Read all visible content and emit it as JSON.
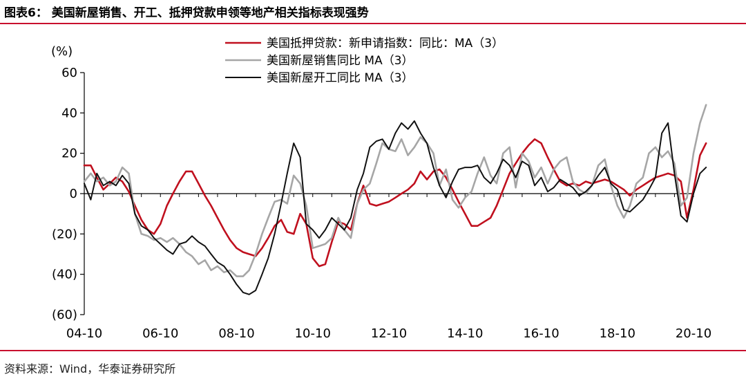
{
  "figure": {
    "title": "图表6： 美国新屋销售、开工、抵押贷款申领等地产相关指标表现强势",
    "source": "资料来源：Wind，华泰证券研究所"
  },
  "colors": {
    "accent_rule": "#c8102e"
  },
  "chart_data": {
    "type": "line",
    "ylabel": "(%)",
    "ylim": [
      -60,
      60
    ],
    "yticks": [
      60,
      40,
      20,
      0,
      -20,
      -40,
      -60
    ],
    "ytick_labels": [
      "60",
      "40",
      "20",
      "0",
      "(20)",
      "(40)",
      "(60)"
    ],
    "xlim": [
      2004.75,
      2020.75
    ],
    "xticks": [
      2004.75,
      2006.75,
      2008.75,
      2010.75,
      2012.75,
      2014.75,
      2016.75,
      2018.75,
      2020.75
    ],
    "xtick_labels": [
      "04-10",
      "06-10",
      "08-10",
      "10-10",
      "12-10",
      "14-10",
      "16-10",
      "18-10",
      "20-10"
    ],
    "legend_position": "top-center",
    "series": [
      {
        "name": "美国抵押贷款：新申请指数：同比：MA（3）",
        "color": "#c0101e",
        "width": 2.6,
        "points": [
          [
            2004.75,
            14
          ],
          [
            2004.92,
            14
          ],
          [
            2005.08,
            8
          ],
          [
            2005.25,
            2
          ],
          [
            2005.42,
            5
          ],
          [
            2005.58,
            8
          ],
          [
            2005.75,
            6
          ],
          [
            2005.92,
            1
          ],
          [
            2006.08,
            -6
          ],
          [
            2006.25,
            -13
          ],
          [
            2006.42,
            -18
          ],
          [
            2006.58,
            -20
          ],
          [
            2006.75,
            -15
          ],
          [
            2006.92,
            -6
          ],
          [
            2007.08,
            0
          ],
          [
            2007.25,
            6
          ],
          [
            2007.42,
            11
          ],
          [
            2007.58,
            11
          ],
          [
            2007.75,
            5
          ],
          [
            2007.92,
            -1
          ],
          [
            2008.08,
            -6
          ],
          [
            2008.25,
            -12
          ],
          [
            2008.42,
            -18
          ],
          [
            2008.58,
            -23
          ],
          [
            2008.75,
            -27
          ],
          [
            2008.92,
            -29
          ],
          [
            2009.08,
            -30
          ],
          [
            2009.25,
            -31
          ],
          [
            2009.42,
            -27
          ],
          [
            2009.58,
            -22
          ],
          [
            2009.75,
            -16
          ],
          [
            2009.92,
            -13
          ],
          [
            2010.08,
            -19
          ],
          [
            2010.25,
            -20
          ],
          [
            2010.42,
            -10
          ],
          [
            2010.58,
            -15
          ],
          [
            2010.75,
            -32
          ],
          [
            2010.92,
            -36
          ],
          [
            2011.08,
            -35
          ],
          [
            2011.25,
            -24
          ],
          [
            2011.42,
            -14
          ],
          [
            2011.58,
            -15
          ],
          [
            2011.75,
            -18
          ],
          [
            2011.92,
            -5
          ],
          [
            2012.08,
            4
          ],
          [
            2012.25,
            -5
          ],
          [
            2012.42,
            -6
          ],
          [
            2012.58,
            -5
          ],
          [
            2012.75,
            -4
          ],
          [
            2012.92,
            -2
          ],
          [
            2013.08,
            0
          ],
          [
            2013.25,
            2
          ],
          [
            2013.42,
            5
          ],
          [
            2013.58,
            11
          ],
          [
            2013.75,
            7
          ],
          [
            2013.92,
            11
          ],
          [
            2014.08,
            12
          ],
          [
            2014.25,
            8
          ],
          [
            2014.42,
            2
          ],
          [
            2014.58,
            -4
          ],
          [
            2014.75,
            -10
          ],
          [
            2014.92,
            -16
          ],
          [
            2015.08,
            -16
          ],
          [
            2015.25,
            -14
          ],
          [
            2015.42,
            -12
          ],
          [
            2015.58,
            -6
          ],
          [
            2015.75,
            2
          ],
          [
            2015.92,
            10
          ],
          [
            2016.08,
            15
          ],
          [
            2016.25,
            20
          ],
          [
            2016.42,
            24
          ],
          [
            2016.58,
            27
          ],
          [
            2016.75,
            25
          ],
          [
            2016.92,
            18
          ],
          [
            2017.08,
            12
          ],
          [
            2017.25,
            6
          ],
          [
            2017.42,
            4
          ],
          [
            2017.58,
            5
          ],
          [
            2017.75,
            4
          ],
          [
            2017.92,
            6
          ],
          [
            2018.08,
            5
          ],
          [
            2018.25,
            6
          ],
          [
            2018.42,
            7
          ],
          [
            2018.58,
            6
          ],
          [
            2018.75,
            4
          ],
          [
            2018.92,
            2
          ],
          [
            2019.08,
            -1
          ],
          [
            2019.25,
            2
          ],
          [
            2019.42,
            4
          ],
          [
            2019.58,
            6
          ],
          [
            2019.75,
            8
          ],
          [
            2019.92,
            9
          ],
          [
            2020.08,
            10
          ],
          [
            2020.25,
            9
          ],
          [
            2020.42,
            6
          ],
          [
            2020.58,
            -12
          ],
          [
            2020.75,
            2
          ],
          [
            2020.92,
            19
          ],
          [
            2021.08,
            25
          ]
        ]
      },
      {
        "name": "美国新屋销售同比 MA（3）",
        "color": "#a6a6a6",
        "width": 2.6,
        "points": [
          [
            2004.75,
            6
          ],
          [
            2004.92,
            10
          ],
          [
            2005.08,
            6
          ],
          [
            2005.25,
            8
          ],
          [
            2005.42,
            4
          ],
          [
            2005.58,
            6
          ],
          [
            2005.75,
            13
          ],
          [
            2005.92,
            10
          ],
          [
            2006.08,
            -10
          ],
          [
            2006.25,
            -20
          ],
          [
            2006.42,
            -21
          ],
          [
            2006.58,
            -23
          ],
          [
            2006.75,
            -22
          ],
          [
            2006.92,
            -24
          ],
          [
            2007.08,
            -22
          ],
          [
            2007.25,
            -25
          ],
          [
            2007.42,
            -29
          ],
          [
            2007.58,
            -31
          ],
          [
            2007.75,
            -35
          ],
          [
            2007.92,
            -33
          ],
          [
            2008.08,
            -38
          ],
          [
            2008.25,
            -36
          ],
          [
            2008.42,
            -39
          ],
          [
            2008.58,
            -38
          ],
          [
            2008.75,
            -41
          ],
          [
            2008.92,
            -41
          ],
          [
            2009.08,
            -38
          ],
          [
            2009.25,
            -30
          ],
          [
            2009.42,
            -20
          ],
          [
            2009.58,
            -12
          ],
          [
            2009.75,
            -4
          ],
          [
            2009.92,
            -3
          ],
          [
            2010.08,
            -5
          ],
          [
            2010.25,
            9
          ],
          [
            2010.42,
            5
          ],
          [
            2010.58,
            -6
          ],
          [
            2010.75,
            -27
          ],
          [
            2010.92,
            -26
          ],
          [
            2011.08,
            -25
          ],
          [
            2011.25,
            -22
          ],
          [
            2011.42,
            -12
          ],
          [
            2011.58,
            -18
          ],
          [
            2011.75,
            -22
          ],
          [
            2011.92,
            -5
          ],
          [
            2012.08,
            2
          ],
          [
            2012.25,
            5
          ],
          [
            2012.42,
            15
          ],
          [
            2012.58,
            25
          ],
          [
            2012.75,
            22
          ],
          [
            2012.92,
            21
          ],
          [
            2013.08,
            27
          ],
          [
            2013.25,
            19
          ],
          [
            2013.42,
            23
          ],
          [
            2013.58,
            28
          ],
          [
            2013.75,
            25
          ],
          [
            2013.92,
            20
          ],
          [
            2014.08,
            4
          ],
          [
            2014.25,
            12
          ],
          [
            2014.42,
            -3
          ],
          [
            2014.58,
            -7
          ],
          [
            2014.75,
            -2
          ],
          [
            2014.92,
            1
          ],
          [
            2015.08,
            10
          ],
          [
            2015.25,
            18
          ],
          [
            2015.42,
            9
          ],
          [
            2015.58,
            5
          ],
          [
            2015.75,
            20
          ],
          [
            2015.92,
            23
          ],
          [
            2016.08,
            3
          ],
          [
            2016.25,
            20
          ],
          [
            2016.42,
            16
          ],
          [
            2016.58,
            8
          ],
          [
            2016.75,
            13
          ],
          [
            2016.92,
            5
          ],
          [
            2017.08,
            12
          ],
          [
            2017.25,
            16
          ],
          [
            2017.42,
            18
          ],
          [
            2017.58,
            6
          ],
          [
            2017.75,
            2
          ],
          [
            2017.92,
            0
          ],
          [
            2018.08,
            4
          ],
          [
            2018.25,
            14
          ],
          [
            2018.42,
            17
          ],
          [
            2018.58,
            4
          ],
          [
            2018.75,
            -6
          ],
          [
            2018.92,
            -12
          ],
          [
            2019.08,
            -6
          ],
          [
            2019.25,
            5
          ],
          [
            2019.42,
            8
          ],
          [
            2019.58,
            20
          ],
          [
            2019.75,
            23
          ],
          [
            2019.92,
            18
          ],
          [
            2020.08,
            21
          ],
          [
            2020.25,
            15
          ],
          [
            2020.42,
            -6
          ],
          [
            2020.58,
            -2
          ],
          [
            2020.75,
            20
          ],
          [
            2020.92,
            35
          ],
          [
            2021.08,
            44
          ]
        ]
      },
      {
        "name": "美国新屋开工同比 MA（3）",
        "color": "#111111",
        "width": 2.0,
        "points": [
          [
            2004.75,
            5
          ],
          [
            2004.92,
            -3
          ],
          [
            2005.08,
            10
          ],
          [
            2005.25,
            4
          ],
          [
            2005.42,
            6
          ],
          [
            2005.58,
            4
          ],
          [
            2005.75,
            9
          ],
          [
            2005.92,
            5
          ],
          [
            2006.08,
            -10
          ],
          [
            2006.25,
            -16
          ],
          [
            2006.42,
            -18
          ],
          [
            2006.58,
            -22
          ],
          [
            2006.75,
            -25
          ],
          [
            2006.92,
            -28
          ],
          [
            2007.08,
            -30
          ],
          [
            2007.25,
            -25
          ],
          [
            2007.42,
            -24
          ],
          [
            2007.58,
            -21
          ],
          [
            2007.75,
            -24
          ],
          [
            2007.92,
            -26
          ],
          [
            2008.08,
            -30
          ],
          [
            2008.25,
            -34
          ],
          [
            2008.42,
            -36
          ],
          [
            2008.58,
            -40
          ],
          [
            2008.75,
            -45
          ],
          [
            2008.92,
            -49
          ],
          [
            2009.08,
            -50
          ],
          [
            2009.25,
            -48
          ],
          [
            2009.42,
            -40
          ],
          [
            2009.58,
            -32
          ],
          [
            2009.75,
            -20
          ],
          [
            2009.92,
            -5
          ],
          [
            2010.08,
            10
          ],
          [
            2010.25,
            25
          ],
          [
            2010.42,
            18
          ],
          [
            2010.58,
            -15
          ],
          [
            2010.75,
            -18
          ],
          [
            2010.92,
            -22
          ],
          [
            2011.08,
            -18
          ],
          [
            2011.25,
            -12
          ],
          [
            2011.42,
            -15
          ],
          [
            2011.58,
            -18
          ],
          [
            2011.75,
            -12
          ],
          [
            2011.92,
            2
          ],
          [
            2012.08,
            10
          ],
          [
            2012.25,
            23
          ],
          [
            2012.42,
            26
          ],
          [
            2012.58,
            27
          ],
          [
            2012.75,
            22
          ],
          [
            2012.92,
            30
          ],
          [
            2013.08,
            35
          ],
          [
            2013.25,
            32
          ],
          [
            2013.42,
            36
          ],
          [
            2013.58,
            30
          ],
          [
            2013.75,
            25
          ],
          [
            2013.92,
            13
          ],
          [
            2014.08,
            4
          ],
          [
            2014.25,
            -2
          ],
          [
            2014.42,
            6
          ],
          [
            2014.58,
            12
          ],
          [
            2014.75,
            13
          ],
          [
            2014.92,
            13
          ],
          [
            2015.08,
            14
          ],
          [
            2015.25,
            8
          ],
          [
            2015.42,
            5
          ],
          [
            2015.58,
            10
          ],
          [
            2015.75,
            17
          ],
          [
            2015.92,
            14
          ],
          [
            2016.08,
            8
          ],
          [
            2016.25,
            16
          ],
          [
            2016.42,
            14
          ],
          [
            2016.58,
            4
          ],
          [
            2016.75,
            8
          ],
          [
            2016.92,
            1
          ],
          [
            2017.08,
            3
          ],
          [
            2017.25,
            7
          ],
          [
            2017.42,
            5
          ],
          [
            2017.58,
            3
          ],
          [
            2017.75,
            -1
          ],
          [
            2017.92,
            1
          ],
          [
            2018.08,
            4
          ],
          [
            2018.25,
            9
          ],
          [
            2018.42,
            13
          ],
          [
            2018.58,
            5
          ],
          [
            2018.75,
            2
          ],
          [
            2018.92,
            -8
          ],
          [
            2019.08,
            -9
          ],
          [
            2019.25,
            -6
          ],
          [
            2019.42,
            -3
          ],
          [
            2019.58,
            2
          ],
          [
            2019.75,
            8
          ],
          [
            2019.92,
            30
          ],
          [
            2020.08,
            35
          ],
          [
            2020.25,
            10
          ],
          [
            2020.42,
            -11
          ],
          [
            2020.58,
            -14
          ],
          [
            2020.75,
            0
          ],
          [
            2020.92,
            10
          ],
          [
            2021.08,
            13
          ]
        ]
      }
    ]
  }
}
